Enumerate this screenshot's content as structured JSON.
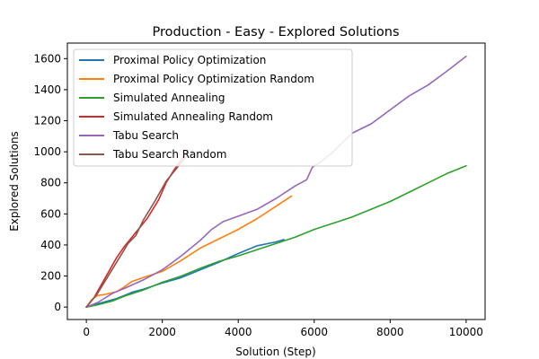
{
  "chart_data": {
    "type": "line",
    "title": "Production - Easy - Explored Solutions",
    "xlabel": "Solution (Step)",
    "ylabel": "Explored Solutions",
    "xlim": [
      -500,
      10500
    ],
    "ylim": [
      -80,
      1700
    ],
    "xticks": [
      0,
      2000,
      4000,
      6000,
      8000,
      10000
    ],
    "yticks": [
      0,
      200,
      400,
      600,
      800,
      1000,
      1200,
      1400,
      1600
    ],
    "grid": false,
    "legend_position": "upper-left",
    "series": [
      {
        "name": "Proximal Policy Optimization",
        "color": "#1f77b4",
        "points": [
          [
            0,
            0
          ],
          [
            200,
            15
          ],
          [
            500,
            35
          ],
          [
            800,
            55
          ],
          [
            1000,
            75
          ],
          [
            1200,
            95
          ],
          [
            1500,
            115
          ],
          [
            2000,
            155
          ],
          [
            2500,
            190
          ],
          [
            3000,
            240
          ],
          [
            3500,
            290
          ],
          [
            4000,
            345
          ],
          [
            4500,
            395
          ],
          [
            5000,
            420
          ],
          [
            5200,
            435
          ]
        ]
      },
      {
        "name": "Proximal Policy Optimization Random",
        "color": "#ff7f0e",
        "points": [
          [
            0,
            0
          ],
          [
            150,
            50
          ],
          [
            300,
            75
          ],
          [
            500,
            82
          ],
          [
            800,
            100
          ],
          [
            1000,
            130
          ],
          [
            1200,
            165
          ],
          [
            1500,
            190
          ],
          [
            2000,
            230
          ],
          [
            2500,
            300
          ],
          [
            3000,
            380
          ],
          [
            3500,
            440
          ],
          [
            4000,
            500
          ],
          [
            4500,
            570
          ],
          [
            5000,
            650
          ],
          [
            5400,
            715
          ]
        ]
      },
      {
        "name": "Simulated Annealing",
        "color": "#2ca02c",
        "points": [
          [
            0,
            0
          ],
          [
            300,
            15
          ],
          [
            700,
            40
          ],
          [
            1000,
            70
          ],
          [
            1500,
            110
          ],
          [
            2000,
            160
          ],
          [
            2500,
            200
          ],
          [
            3000,
            250
          ],
          [
            3500,
            295
          ],
          [
            4000,
            330
          ],
          [
            4500,
            370
          ],
          [
            5000,
            410
          ],
          [
            5500,
            450
          ],
          [
            6000,
            500
          ],
          [
            6500,
            540
          ],
          [
            7000,
            580
          ],
          [
            7500,
            630
          ],
          [
            8000,
            680
          ],
          [
            8500,
            740
          ],
          [
            9000,
            800
          ],
          [
            9500,
            860
          ],
          [
            10000,
            910
          ]
        ]
      },
      {
        "name": "Simulated Annealing Random",
        "color": "#d62728",
        "points": [
          [
            0,
            0
          ],
          [
            200,
            60
          ],
          [
            500,
            190
          ],
          [
            800,
            320
          ],
          [
            1000,
            390
          ],
          [
            1300,
            480
          ],
          [
            1600,
            570
          ],
          [
            1900,
            690
          ],
          [
            2100,
            800
          ],
          [
            2300,
            880
          ],
          [
            2500,
            950
          ],
          [
            2650,
            1000
          ]
        ]
      },
      {
        "name": "Tabu Search",
        "color": "#9467bd",
        "points": [
          [
            0,
            0
          ],
          [
            300,
            30
          ],
          [
            700,
            90
          ],
          [
            1000,
            120
          ],
          [
            1500,
            175
          ],
          [
            2000,
            240
          ],
          [
            2500,
            330
          ],
          [
            3000,
            430
          ],
          [
            3300,
            500
          ],
          [
            3600,
            550
          ],
          [
            4000,
            585
          ],
          [
            4500,
            630
          ],
          [
            5000,
            700
          ],
          [
            5500,
            780
          ],
          [
            5800,
            820
          ],
          [
            5950,
            900
          ],
          [
            6200,
            940
          ],
          [
            6500,
            1000
          ],
          [
            7000,
            1120
          ],
          [
            7500,
            1180
          ],
          [
            8000,
            1270
          ],
          [
            8500,
            1360
          ],
          [
            9000,
            1430
          ],
          [
            9500,
            1520
          ],
          [
            10000,
            1615
          ]
        ]
      },
      {
        "name": "Tabu Search Random",
        "color": "#8c564b",
        "points": [
          [
            0,
            0
          ],
          [
            300,
            90
          ],
          [
            600,
            210
          ],
          [
            900,
            330
          ],
          [
            1100,
            410
          ],
          [
            1300,
            460
          ],
          [
            1500,
            560
          ],
          [
            1800,
            680
          ],
          [
            2100,
            810
          ],
          [
            2400,
            900
          ],
          [
            2700,
            990
          ],
          [
            2800,
            1010
          ]
        ]
      }
    ]
  }
}
